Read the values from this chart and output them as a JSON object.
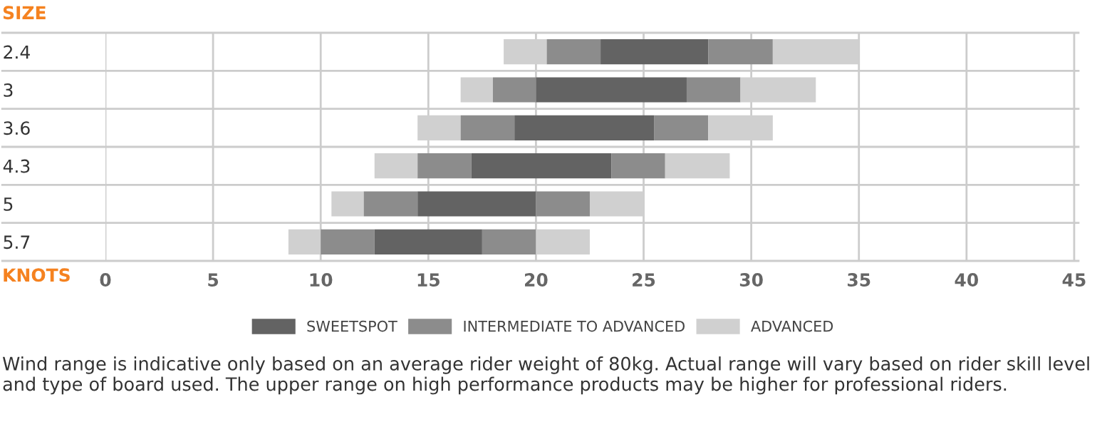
{
  "chart_data": {
    "type": "bar",
    "orientation": "horizontal",
    "categories": [
      "2.4",
      "3",
      "3.6",
      "4.3",
      "5",
      "5.7"
    ],
    "series": [
      {
        "name": "ADVANCED",
        "color": "#d0d0d0",
        "base": [
          18.5,
          16.5,
          14.5,
          12.5,
          10.5,
          8.5
        ],
        "values": [
          2,
          1.5,
          2,
          2,
          1.5,
          1.5
        ]
      },
      {
        "name": "INTERMEDIATE TO ADVANCED",
        "color": "#8c8c8c",
        "base": [
          20.5,
          18,
          16.5,
          14.5,
          12,
          10
        ],
        "values": [
          2.5,
          2,
          2.5,
          2.5,
          2.5,
          2.5
        ]
      },
      {
        "name": "SWEETSPOT",
        "color": "#636363",
        "base": [
          23,
          20,
          19,
          17,
          14.5,
          12.5
        ],
        "values": [
          5,
          7,
          6.5,
          6.5,
          5.5,
          5
        ]
      },
      {
        "color": "#8c8c8c",
        "base": [
          28,
          27,
          25.5,
          23.5,
          20,
          17.5
        ],
        "values": [
          3,
          2.5,
          2.5,
          2.5,
          2.5,
          2.5
        ]
      },
      {
        "color": "#d0d0d0",
        "base": [
          31,
          29.5,
          28,
          26,
          22.5,
          20
        ],
        "values": [
          4,
          3.5,
          3,
          3,
          2.5,
          2.5
        ]
      }
    ],
    "xlim": [
      0,
      45.2
    ],
    "xticks": [
      0,
      5,
      10,
      15,
      20,
      25,
      30,
      35,
      40,
      45
    ],
    "xlabel": "KNOTS",
    "ylabel": "SIZE",
    "grid": true,
    "legend": "bottom",
    "annotations": [
      "Wind range is indicative only based on an average rider weight of 80kg. Actual range will vary based on rider skill level and type of board used. The upper range on high performance products may be higher for professional riders."
    ]
  }
}
